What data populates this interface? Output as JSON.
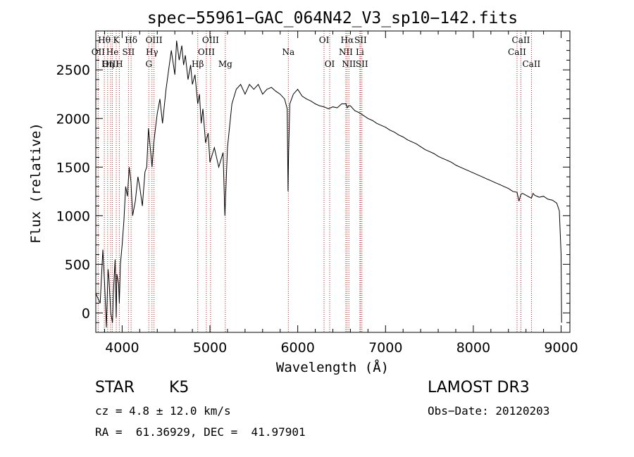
{
  "chart_data": {
    "type": "line",
    "title": "spec−55961−GAC_064N42_V3_sp10−142.fits",
    "xlabel": "Wavelength (Å)",
    "ylabel": "Flux (relative)",
    "xlim": [
      3700,
      9100
    ],
    "ylim": [
      -200,
      2900
    ],
    "xticks": [
      4000,
      5000,
      6000,
      7000,
      8000,
      9000
    ],
    "yticks": [
      0,
      500,
      1000,
      1500,
      2000,
      2500
    ],
    "series": [
      {
        "name": "spectrum",
        "x": [
          3700,
          3750,
          3780,
          3800,
          3820,
          3840,
          3850,
          3870,
          3890,
          3900,
          3920,
          3933,
          3940,
          3960,
          3968,
          3980,
          4000,
          4020,
          4040,
          4060,
          4080,
          4100,
          4120,
          4150,
          4180,
          4200,
          4230,
          4260,
          4280,
          4300,
          4320,
          4340,
          4360,
          4380,
          4400,
          4430,
          4460,
          4500,
          4530,
          4560,
          4600,
          4620,
          4650,
          4680,
          4700,
          4720,
          4750,
          4780,
          4800,
          4830,
          4861,
          4880,
          4900,
          4920,
          4950,
          4980,
          5000,
          5050,
          5100,
          5150,
          5170,
          5183,
          5200,
          5250,
          5300,
          5350,
          5400,
          5450,
          5500,
          5550,
          5600,
          5650,
          5700,
          5750,
          5800,
          5850,
          5880,
          5890,
          5896,
          5910,
          5950,
          6000,
          6050,
          6100,
          6150,
          6200,
          6250,
          6300,
          6350,
          6400,
          6450,
          6500,
          6550,
          6563,
          6580,
          6600,
          6650,
          6700,
          6750,
          6800,
          6850,
          6900,
          6950,
          7000,
          7050,
          7100,
          7150,
          7200,
          7250,
          7300,
          7350,
          7400,
          7450,
          7500,
          7550,
          7600,
          7650,
          7700,
          7750,
          7800,
          7850,
          7900,
          7950,
          8000,
          8050,
          8100,
          8150,
          8200,
          8250,
          8300,
          8350,
          8400,
          8450,
          8498,
          8520,
          8542,
          8560,
          8600,
          8662,
          8680,
          8700,
          8750,
          8800,
          8850,
          8900,
          8950,
          8980,
          9000,
          9005
        ],
        "values": [
          200,
          100,
          650,
          300,
          -150,
          450,
          350,
          0,
          -100,
          200,
          550,
          -50,
          400,
          300,
          100,
          500,
          700,
          950,
          1300,
          1200,
          1500,
          1350,
          1000,
          1150,
          1400,
          1300,
          1100,
          1450,
          1500,
          1900,
          1700,
          1500,
          1750,
          1900,
          2050,
          2200,
          1950,
          2300,
          2500,
          2700,
          2450,
          2800,
          2600,
          2750,
          2550,
          2650,
          2400,
          2550,
          2350,
          2450,
          2150,
          2250,
          1950,
          2100,
          1750,
          1850,
          1550,
          1700,
          1500,
          1650,
          1000,
          1300,
          1700,
          2150,
          2300,
          2350,
          2250,
          2350,
          2300,
          2350,
          2250,
          2300,
          2320,
          2280,
          2250,
          2200,
          2100,
          1250,
          1650,
          2150,
          2250,
          2300,
          2230,
          2200,
          2180,
          2150,
          2130,
          2120,
          2100,
          2120,
          2110,
          2150,
          2150,
          2110,
          2130,
          2130,
          2080,
          2060,
          2030,
          2000,
          1980,
          1950,
          1930,
          1910,
          1880,
          1860,
          1830,
          1810,
          1780,
          1760,
          1740,
          1710,
          1680,
          1660,
          1640,
          1610,
          1590,
          1570,
          1550,
          1520,
          1500,
          1480,
          1460,
          1440,
          1420,
          1400,
          1380,
          1360,
          1340,
          1320,
          1300,
          1280,
          1250,
          1240,
          1150,
          1220,
          1230,
          1210,
          1180,
          1230,
          1210,
          1190,
          1200,
          1170,
          1160,
          1130,
          1050,
          600,
          -100
        ]
      }
    ],
    "lines": [
      {
        "label": "Hθ",
        "x": 3797,
        "row": 0
      },
      {
        "label": "OII",
        "x": 3727,
        "row": 1
      },
      {
        "label": "OIII",
        "x": 3869,
        "row": 2
      },
      {
        "label": "He",
        "x": 3889,
        "row": 1
      },
      {
        "label": "Hη",
        "x": 3835,
        "row": 2
      },
      {
        "label": "K",
        "x": 3933,
        "row": 0
      },
      {
        "label": "H",
        "x": 3968,
        "row": 2
      },
      {
        "label": "SII",
        "x": 4072,
        "row": 1
      },
      {
        "label": "Hδ",
        "x": 4102,
        "row": 0
      },
      {
        "label": "OIII",
        "x": 4363,
        "row": 0
      },
      {
        "label": "Hγ",
        "x": 4340,
        "row": 1
      },
      {
        "label": "G",
        "x": 4304,
        "row": 2
      },
      {
        "label": "Hβ",
        "x": 4861,
        "row": 2
      },
      {
        "label": "OIII",
        "x": 5007,
        "row": 0
      },
      {
        "label": "OIII",
        "x": 4959,
        "row": 1
      },
      {
        "label": "Mg",
        "x": 5175,
        "row": 2
      },
      {
        "label": "Na",
        "x": 5893,
        "row": 1
      },
      {
        "label": "OI",
        "x": 6300,
        "row": 0
      },
      {
        "label": "OI",
        "x": 6364,
        "row": 2
      },
      {
        "label": "Hα",
        "x": 6563,
        "row": 0
      },
      {
        "label": "NII",
        "x": 6548,
        "row": 1
      },
      {
        "label": "NII",
        "x": 6583,
        "row": 2
      },
      {
        "label": "SII",
        "x": 6716,
        "row": 0
      },
      {
        "label": "Li",
        "x": 6708,
        "row": 1
      },
      {
        "label": "SII",
        "x": 6731,
        "row": 2
      },
      {
        "label": "CaII",
        "x": 8542,
        "row": 0
      },
      {
        "label": "CaII",
        "x": 8498,
        "row": 1
      },
      {
        "label": "CaII",
        "x": 8662,
        "row": 2
      }
    ]
  },
  "info": {
    "class": "STAR",
    "subclass": "K5",
    "survey": "LAMOST DR3",
    "cz": "cz = 4.8 ± 12.0 km/s",
    "obs_date": "Obs−Date: 20120203",
    "coords": "RA =  61.36929, DEC =  41.97901"
  },
  "colors": {
    "axis": "#000000",
    "spectrum": "#000000",
    "line_marker": "#b22222"
  }
}
